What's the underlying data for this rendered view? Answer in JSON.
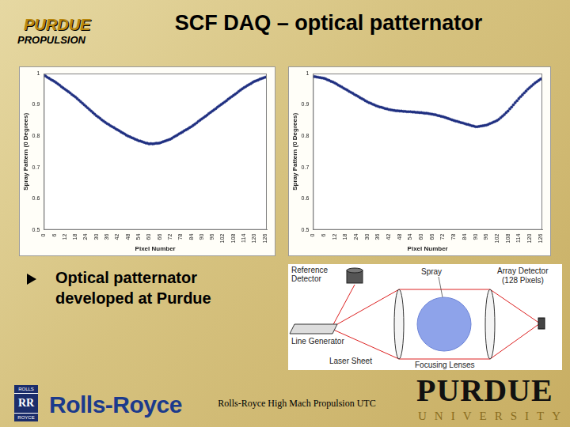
{
  "slide": {
    "title": "SCF DAQ – optical patternator",
    "bullet": "Optical patternator developed at Purdue",
    "footer": "Rolls-Royce High Mach Propulsion UTC",
    "logos": {
      "purdue_propulsion": [
        "PURDUE",
        "PROPULSION"
      ],
      "rolls_royce": "Rolls-Royce",
      "rolls_royce_badge": [
        "ROLLS",
        "RR",
        "ROYCE"
      ],
      "purdue_university": [
        "PURDUE",
        "UNIVERSITY"
      ]
    }
  },
  "diagram": {
    "reference_detector": [
      "Reference",
      "Detector"
    ],
    "spray": "Spray",
    "array_detector": [
      "Array Detector",
      "(128 Pixels)"
    ],
    "line_generator": "Line Generator",
    "laser_sheet": "Laser Sheet",
    "focusing_lenses": "Focusing Lenses"
  },
  "chart_data": [
    {
      "type": "line",
      "x_label": "Pixel Number",
      "y_label": "Spray Pattern (0 Degrees)",
      "color": "#1f2f80",
      "marker": "circle",
      "grid": false,
      "xlim": [
        0,
        127
      ],
      "xticks": [
        0,
        6,
        12,
        18,
        24,
        30,
        36,
        42,
        48,
        54,
        60,
        66,
        72,
        78,
        84,
        90,
        96,
        102,
        108,
        114,
        120,
        126
      ],
      "ylim": [
        0.5,
        1
      ],
      "yticks": [
        0.5,
        0.6,
        0.7,
        0.8,
        0.9,
        1
      ],
      "x": [
        0,
        1,
        2,
        3,
        4,
        5,
        6,
        7,
        8,
        9,
        10,
        11,
        12,
        13,
        14,
        15,
        16,
        17,
        18,
        19,
        20,
        21,
        22,
        23,
        24,
        25,
        26,
        27,
        28,
        29,
        30,
        31,
        32,
        33,
        34,
        35,
        36,
        37,
        38,
        39,
        40,
        41,
        42,
        43,
        44,
        45,
        46,
        47,
        48,
        49,
        50,
        51,
        52,
        53,
        54,
        55,
        56,
        57,
        58,
        59,
        60,
        61,
        62,
        63,
        64,
        65,
        66,
        67,
        68,
        69,
        70,
        71,
        72,
        73,
        74,
        75,
        76,
        77,
        78,
        79,
        80,
        81,
        82,
        83,
        84,
        85,
        86,
        87,
        88,
        89,
        90,
        91,
        92,
        93,
        94,
        95,
        96,
        97,
        98,
        99,
        100,
        101,
        102,
        103,
        104,
        105,
        106,
        107,
        108,
        109,
        110,
        111,
        112,
        113,
        114,
        115,
        116,
        117,
        118,
        119,
        120,
        121,
        122,
        123,
        124,
        125,
        126,
        127
      ],
      "values": [
        0.995,
        0.992,
        0.988,
        0.985,
        0.981,
        0.978,
        0.975,
        0.971,
        0.967,
        0.963,
        0.958,
        0.954,
        0.95,
        0.946,
        0.942,
        0.938,
        0.933,
        0.929,
        0.925,
        0.92,
        0.915,
        0.91,
        0.905,
        0.9,
        0.895,
        0.89,
        0.885,
        0.88,
        0.875,
        0.87,
        0.865,
        0.861,
        0.857,
        0.852,
        0.848,
        0.844,
        0.84,
        0.837,
        0.833,
        0.83,
        0.827,
        0.823,
        0.82,
        0.817,
        0.813,
        0.81,
        0.807,
        0.803,
        0.8,
        0.798,
        0.795,
        0.793,
        0.79,
        0.788,
        0.785,
        0.784,
        0.782,
        0.78,
        0.778,
        0.777,
        0.775,
        0.776,
        0.775,
        0.776,
        0.777,
        0.777,
        0.778,
        0.78,
        0.782,
        0.784,
        0.786,
        0.788,
        0.79,
        0.793,
        0.797,
        0.8,
        0.803,
        0.807,
        0.81,
        0.813,
        0.817,
        0.82,
        0.823,
        0.827,
        0.83,
        0.834,
        0.838,
        0.842,
        0.847,
        0.851,
        0.855,
        0.859,
        0.863,
        0.867,
        0.872,
        0.876,
        0.88,
        0.884,
        0.888,
        0.893,
        0.897,
        0.901,
        0.905,
        0.909,
        0.913,
        0.918,
        0.922,
        0.926,
        0.93,
        0.934,
        0.938,
        0.943,
        0.947,
        0.951,
        0.955,
        0.958,
        0.962,
        0.965,
        0.968,
        0.972,
        0.975,
        0.977,
        0.979,
        0.982,
        0.984,
        0.986,
        0.988,
        0.99
      ]
    },
    {
      "type": "line",
      "x_label": "Pixel Number",
      "y_label": "Spray Pattern (0 Degrees)",
      "color": "#1f2f80",
      "marker": "circle",
      "grid": false,
      "xlim": [
        0,
        127
      ],
      "xticks": [
        0,
        6,
        12,
        18,
        24,
        30,
        36,
        42,
        48,
        54,
        60,
        66,
        72,
        78,
        84,
        90,
        96,
        102,
        108,
        114,
        120,
        126
      ],
      "ylim": [
        0.5,
        1
      ],
      "yticks": [
        0.5,
        0.6,
        0.7,
        0.8,
        0.9,
        1
      ],
      "x": [
        0,
        1,
        2,
        3,
        4,
        5,
        6,
        7,
        8,
        9,
        10,
        11,
        12,
        13,
        14,
        15,
        16,
        17,
        18,
        19,
        20,
        21,
        22,
        23,
        24,
        25,
        26,
        27,
        28,
        29,
        30,
        31,
        32,
        33,
        34,
        35,
        36,
        37,
        38,
        39,
        40,
        41,
        42,
        43,
        44,
        45,
        46,
        47,
        48,
        49,
        50,
        51,
        52,
        53,
        54,
        55,
        56,
        57,
        58,
        59,
        60,
        61,
        62,
        63,
        64,
        65,
        66,
        67,
        68,
        69,
        70,
        71,
        72,
        73,
        74,
        75,
        76,
        77,
        78,
        79,
        80,
        81,
        82,
        83,
        84,
        85,
        86,
        87,
        88,
        89,
        90,
        91,
        92,
        93,
        94,
        95,
        96,
        97,
        98,
        99,
        100,
        101,
        102,
        103,
        104,
        105,
        106,
        107,
        108,
        109,
        110,
        111,
        112,
        113,
        114,
        115,
        116,
        117,
        118,
        119,
        120,
        121,
        122,
        123,
        124,
        125,
        126,
        127
      ],
      "values": [
        0.99,
        0.99,
        0.989,
        0.988,
        0.987,
        0.986,
        0.985,
        0.983,
        0.98,
        0.978,
        0.975,
        0.973,
        0.97,
        0.967,
        0.963,
        0.96,
        0.957,
        0.953,
        0.95,
        0.947,
        0.943,
        0.94,
        0.937,
        0.933,
        0.93,
        0.927,
        0.923,
        0.92,
        0.917,
        0.913,
        0.91,
        0.907,
        0.905,
        0.902,
        0.9,
        0.897,
        0.895,
        0.893,
        0.892,
        0.89,
        0.888,
        0.887,
        0.885,
        0.884,
        0.883,
        0.882,
        0.881,
        0.881,
        0.88,
        0.88,
        0.879,
        0.879,
        0.878,
        0.878,
        0.878,
        0.877,
        0.877,
        0.876,
        0.876,
        0.875,
        0.875,
        0.874,
        0.873,
        0.873,
        0.872,
        0.871,
        0.87,
        0.869,
        0.868,
        0.866,
        0.865,
        0.863,
        0.862,
        0.86,
        0.858,
        0.856,
        0.854,
        0.852,
        0.85,
        0.848,
        0.847,
        0.845,
        0.843,
        0.842,
        0.84,
        0.838,
        0.837,
        0.835,
        0.833,
        0.832,
        0.83,
        0.83,
        0.831,
        0.832,
        0.833,
        0.834,
        0.835,
        0.837,
        0.84,
        0.842,
        0.845,
        0.847,
        0.85,
        0.854,
        0.859,
        0.864,
        0.869,
        0.875,
        0.88,
        0.887,
        0.893,
        0.9,
        0.907,
        0.913,
        0.92,
        0.926,
        0.932,
        0.938,
        0.944,
        0.95,
        0.955,
        0.96,
        0.965,
        0.97,
        0.974,
        0.978,
        0.982,
        0.985
      ]
    }
  ]
}
